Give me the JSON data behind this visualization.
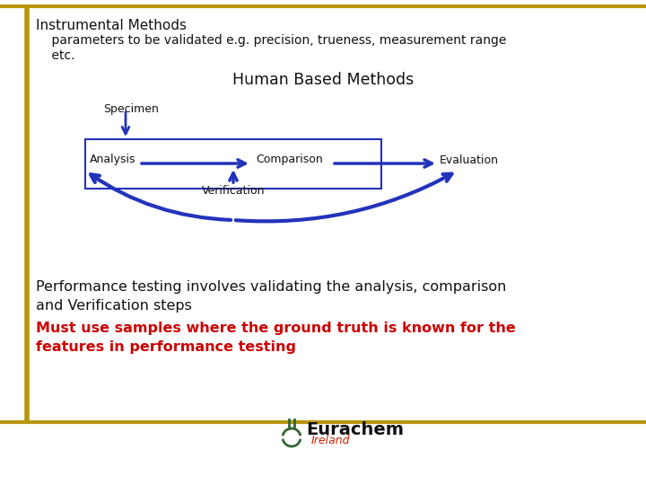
{
  "bg_color": "#ffffff",
  "border_color_gold": "#b8960c",
  "arrow_color": "#2233bb",
  "box_border_color": "#2233bb",
  "text_color_black": "#111111",
  "text_color_red": "#cc0000",
  "text_instrumental_methods": "Instrumental Methods",
  "text_parameters_line1": "    parameters to be validated e.g. precision, trueness, measurement range",
  "text_parameters_line2": "    etc.",
  "text_human_based": "Human Based Methods",
  "text_specimen": "Specimen",
  "text_analysis": "Analysis",
  "text_comparison": "Comparison",
  "text_evaluation": "Evaluation",
  "text_verification": "Verification",
  "text_performance1": "Performance testing involves validating the analysis, comparison",
  "text_performance2": "and Verification steps",
  "text_performance3": "Must use samples where the ground truth is known for the",
  "text_performance4": "features in performance testing",
  "eurachem_text": "Eurachem",
  "eurachem_subtext": "Ireland",
  "eurachem_green": "#336633",
  "eurachem_red": "#cc2200",
  "fig_w": 7.2,
  "fig_h": 5.4,
  "dpi": 100
}
